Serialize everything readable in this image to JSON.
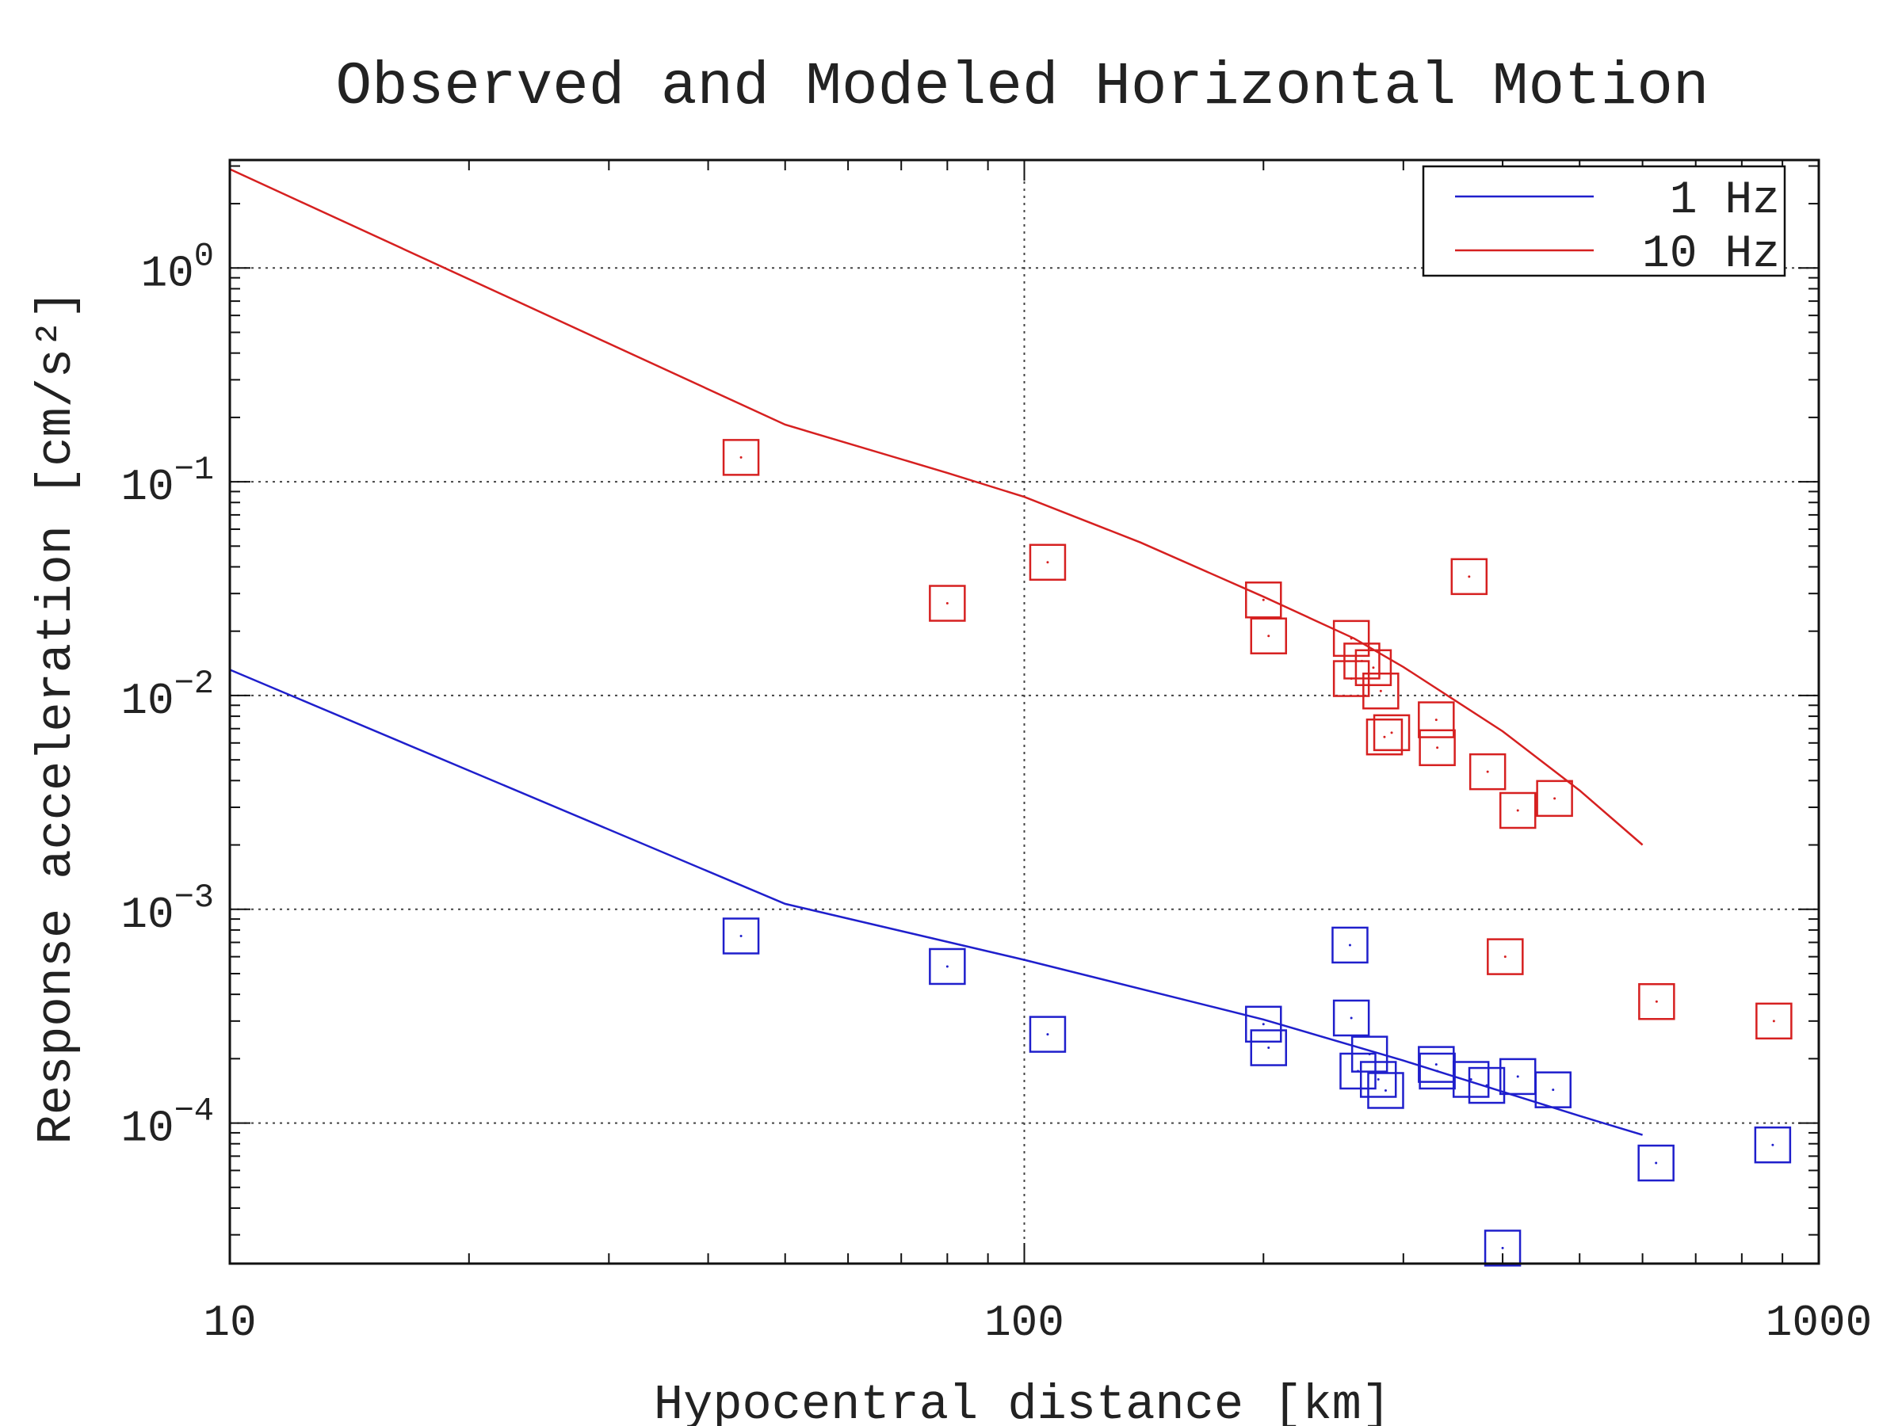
{
  "chart_data": {
    "type": "scatter",
    "title": "Observed and Modeled Horizontal Motion",
    "xlabel": "Hypocentral distance [km]",
    "ylabel": "Response acceleration [cm/s²]",
    "x_scale": "log",
    "y_scale": "log",
    "xlim": [
      10,
      1000
    ],
    "ylim": [
      2.2e-05,
      3.2
    ],
    "x_ticks": [
      {
        "value": 10,
        "label": "10"
      },
      {
        "value": 100,
        "label": "100"
      },
      {
        "value": 1000,
        "label": "1000"
      }
    ],
    "y_ticks": [
      {
        "value": 1,
        "base": "10",
        "exp": "0"
      },
      {
        "value": 0.1,
        "base": "10",
        "exp": "−1"
      },
      {
        "value": 0.01,
        "base": "10",
        "exp": "−2"
      },
      {
        "value": 0.001,
        "base": "10",
        "exp": "−3"
      },
      {
        "value": 0.0001,
        "base": "10",
        "exp": "−4"
      }
    ],
    "grid": true,
    "legend_position": "top-right",
    "series": [
      {
        "name": "1 Hz",
        "color": "#1f1fcc",
        "model_line": [
          [
            10,
            0.0132
          ],
          [
            50,
            0.00106
          ],
          [
            100,
            0.00058
          ],
          [
            200,
            0.000305
          ],
          [
            300,
            0.000196
          ],
          [
            400,
            0.00014
          ],
          [
            500,
            0.000108
          ],
          [
            600,
            8.8e-05
          ]
        ],
        "observed": [
          [
            44,
            0.00075
          ],
          [
            80,
            0.00054
          ],
          [
            107,
            0.00026
          ],
          [
            200,
            0.00029
          ],
          [
            203,
            0.000225
          ],
          [
            257,
            0.00068
          ],
          [
            258,
            0.00031
          ],
          [
            263,
            0.000175
          ],
          [
            272,
            0.00021
          ],
          [
            279,
            0.00016
          ],
          [
            285,
            0.000142
          ],
          [
            330,
            0.000188
          ],
          [
            331,
            0.000175
          ],
          [
            365,
            0.00016
          ],
          [
            382,
            0.00015
          ],
          [
            418,
            0.000165
          ],
          [
            463,
            0.000143
          ],
          [
            400,
            2.6e-05
          ],
          [
            624,
            6.5e-05
          ],
          [
            875,
            7.9e-05
          ]
        ]
      },
      {
        "name": "10 Hz",
        "color": "#d62020",
        "model_line": [
          [
            10,
            2.9
          ],
          [
            50,
            0.185
          ],
          [
            80,
            0.11
          ],
          [
            100,
            0.085
          ],
          [
            140,
            0.052
          ],
          [
            200,
            0.029
          ],
          [
            260,
            0.0185
          ],
          [
            300,
            0.0136
          ],
          [
            400,
            0.0068
          ],
          [
            500,
            0.0036
          ],
          [
            600,
            0.002
          ]
        ],
        "observed": [
          [
            44,
            0.13
          ],
          [
            80,
            0.027
          ],
          [
            107,
            0.042
          ],
          [
            200,
            0.028
          ],
          [
            203,
            0.019
          ],
          [
            258,
            0.0185
          ],
          [
            258,
            0.012
          ],
          [
            266,
            0.0145
          ],
          [
            275,
            0.0135
          ],
          [
            281,
            0.0105
          ],
          [
            284,
            0.0064
          ],
          [
            290,
            0.0067
          ],
          [
            330,
            0.0077
          ],
          [
            331,
            0.0057
          ],
          [
            363,
            0.036
          ],
          [
            383,
            0.0044
          ],
          [
            418,
            0.0029
          ],
          [
            465,
            0.0033
          ],
          [
            403,
            0.0006
          ],
          [
            625,
            0.00037
          ],
          [
            878,
            0.0003
          ]
        ]
      }
    ]
  }
}
